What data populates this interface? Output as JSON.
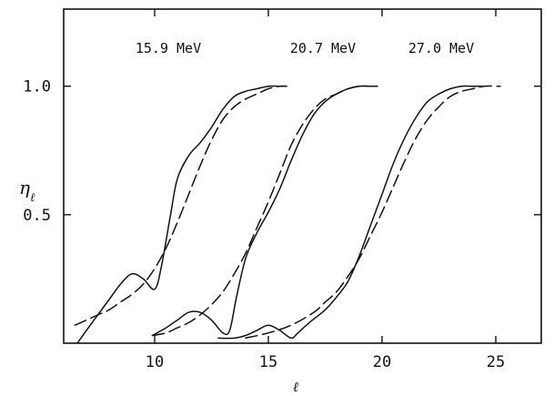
{
  "chart_data": {
    "type": "line",
    "title": "",
    "xlabel": "ℓ",
    "ylabel_main": "η",
    "ylabel_sub": "ℓ",
    "xlim": [
      6,
      27
    ],
    "ylim": [
      0,
      1.3
    ],
    "x_ticks": [
      10,
      15,
      20,
      25
    ],
    "x_tick_labels": [
      "10",
      "15",
      "20",
      "25"
    ],
    "y_ticks": [
      0.5,
      1.0
    ],
    "y_tick_labels": [
      "0.5",
      "1.0"
    ],
    "grid": false,
    "legend": "none",
    "series": [
      {
        "name": "15.9 MeV",
        "style": "solid",
        "x": [
          6.6,
          7.0,
          7.5,
          8.0,
          8.5,
          9.0,
          9.5,
          10.0,
          10.3,
          10.7,
          11.0,
          11.5,
          12.0,
          12.5,
          13.0,
          13.5,
          14.0,
          14.5,
          15.0,
          15.5,
          15.8
        ],
        "y": [
          0.0,
          0.05,
          0.11,
          0.17,
          0.23,
          0.27,
          0.25,
          0.21,
          0.3,
          0.5,
          0.64,
          0.73,
          0.78,
          0.84,
          0.91,
          0.96,
          0.98,
          0.99,
          1.0,
          1.0,
          1.0
        ]
      },
      {
        "name": "15.9 MeV",
        "style": "dashed",
        "x": [
          6.5,
          7.0,
          7.5,
          8.0,
          8.5,
          9.0,
          9.5,
          10.0,
          10.5,
          11.0,
          11.5,
          12.0,
          12.5,
          13.0,
          13.5,
          14.0,
          14.5,
          15.0,
          15.5,
          15.8
        ],
        "y": [
          0.07,
          0.09,
          0.11,
          0.13,
          0.16,
          0.19,
          0.23,
          0.29,
          0.37,
          0.47,
          0.58,
          0.69,
          0.79,
          0.87,
          0.92,
          0.95,
          0.97,
          0.99,
          1.0,
          1.0
        ]
      },
      {
        "name": "20.7 MeV",
        "style": "solid",
        "x": [
          9.9,
          10.5,
          11.0,
          11.5,
          12.0,
          12.5,
          13.0,
          13.3,
          13.6,
          14.0,
          14.5,
          15.0,
          15.5,
          16.0,
          16.5,
          17.0,
          17.5,
          18.0,
          18.5,
          19.0,
          19.5,
          19.8
        ],
        "y": [
          0.03,
          0.06,
          0.09,
          0.12,
          0.12,
          0.09,
          0.04,
          0.05,
          0.18,
          0.33,
          0.43,
          0.51,
          0.6,
          0.71,
          0.81,
          0.89,
          0.94,
          0.97,
          0.99,
          1.0,
          1.0,
          1.0
        ]
      },
      {
        "name": "20.7 MeV",
        "style": "dashed",
        "x": [
          9.9,
          10.5,
          11.0,
          11.5,
          12.0,
          12.5,
          13.0,
          13.5,
          14.0,
          14.5,
          15.0,
          15.5,
          16.0,
          16.5,
          17.0,
          17.5,
          18.0,
          18.5,
          19.0,
          19.5,
          19.8
        ],
        "y": [
          0.03,
          0.04,
          0.06,
          0.08,
          0.11,
          0.15,
          0.2,
          0.27,
          0.35,
          0.45,
          0.55,
          0.66,
          0.77,
          0.85,
          0.91,
          0.95,
          0.97,
          0.99,
          1.0,
          1.0,
          1.0
        ]
      },
      {
        "name": "27.0 MeV",
        "style": "solid",
        "x": [
          12.8,
          13.5,
          14.0,
          14.5,
          15.0,
          15.5,
          16.0,
          16.3,
          16.8,
          17.5,
          18.0,
          18.5,
          19.0,
          19.5,
          20.0,
          20.5,
          21.0,
          21.5,
          22.0,
          22.5,
          23.0,
          23.5,
          24.0,
          24.4
        ],
        "y": [
          0.02,
          0.02,
          0.03,
          0.05,
          0.07,
          0.05,
          0.02,
          0.04,
          0.08,
          0.13,
          0.18,
          0.24,
          0.34,
          0.46,
          0.58,
          0.7,
          0.8,
          0.88,
          0.94,
          0.97,
          0.99,
          1.0,
          1.0,
          1.0
        ]
      },
      {
        "name": "27.0 MeV",
        "style": "dashed",
        "x": [
          14.0,
          15.0,
          16.0,
          17.0,
          17.5,
          18.0,
          18.5,
          19.0,
          19.5,
          20.0,
          20.5,
          21.0,
          21.5,
          22.0,
          22.5,
          23.0,
          23.5,
          24.0,
          24.5,
          25.0,
          25.2
        ],
        "y": [
          0.02,
          0.04,
          0.07,
          0.12,
          0.16,
          0.2,
          0.26,
          0.33,
          0.42,
          0.51,
          0.61,
          0.71,
          0.8,
          0.87,
          0.92,
          0.96,
          0.98,
          0.99,
          1.0,
          1.0,
          1.0
        ]
      }
    ],
    "series_labels": [
      {
        "text": "15.9 MeV",
        "x": 10.6,
        "y": 1.13
      },
      {
        "text": "20.7 MeV",
        "x": 17.4,
        "y": 1.13
      },
      {
        "text": "27.0 MeV",
        "x": 22.6,
        "y": 1.13
      }
    ]
  }
}
